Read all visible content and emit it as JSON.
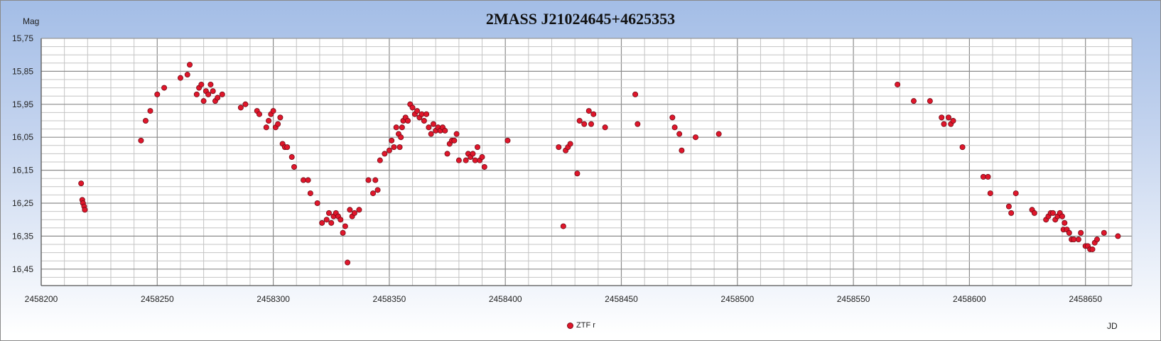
{
  "chart_data": {
    "type": "scatter",
    "title": "2MASS J21024645+4625353",
    "ylabel": "Mag",
    "xlabel": "JD",
    "xlim": [
      2458200,
      2458670
    ],
    "ylim": [
      15.75,
      16.5
    ],
    "y_inverted": true,
    "grid": true,
    "legend_position": "bottom-center",
    "xticks": [
      "2458200",
      "2458250",
      "2458300",
      "2458350",
      "2458400",
      "2458450",
      "2458500",
      "2458550",
      "2458600",
      "2458650"
    ],
    "yticks": [
      "15,75",
      "15,85",
      "15,95",
      "16,05",
      "16,15",
      "16,25",
      "16,35",
      "16,45"
    ],
    "series": [
      {
        "name": "ZTF r",
        "color": "#e0162b",
        "points": [
          [
            2458217.2,
            16.19
          ],
          [
            2458217.7,
            16.24
          ],
          [
            2458218.0,
            16.25
          ],
          [
            2458218.5,
            16.26
          ],
          [
            2458218.8,
            16.27
          ],
          [
            2458243,
            16.06
          ],
          [
            2458245,
            16.0
          ],
          [
            2458247,
            15.97
          ],
          [
            2458250,
            15.92
          ],
          [
            2458253,
            15.9
          ],
          [
            2458260,
            15.87
          ],
          [
            2458263,
            15.86
          ],
          [
            2458264,
            15.83
          ],
          [
            2458267,
            15.92
          ],
          [
            2458268,
            15.9
          ],
          [
            2458269,
            15.89
          ],
          [
            2458270,
            15.94
          ],
          [
            2458271,
            15.91
          ],
          [
            2458272,
            15.92
          ],
          [
            2458273,
            15.89
          ],
          [
            2458274,
            15.91
          ],
          [
            2458275,
            15.94
          ],
          [
            2458276,
            15.93
          ],
          [
            2458278,
            15.92
          ],
          [
            2458286,
            15.96
          ],
          [
            2458288,
            15.95
          ],
          [
            2458293,
            15.97
          ],
          [
            2458294,
            15.98
          ],
          [
            2458297,
            16.02
          ],
          [
            2458298,
            16.0
          ],
          [
            2458299,
            15.98
          ],
          [
            2458300,
            15.97
          ],
          [
            2458301,
            16.02
          ],
          [
            2458302,
            16.01
          ],
          [
            2458303,
            15.99
          ],
          [
            2458304,
            16.07
          ],
          [
            2458305,
            16.08
          ],
          [
            2458306,
            16.08
          ],
          [
            2458308,
            16.11
          ],
          [
            2458309,
            16.14
          ],
          [
            2458313,
            16.18
          ],
          [
            2458315,
            16.18
          ],
          [
            2458316,
            16.22
          ],
          [
            2458319,
            16.25
          ],
          [
            2458321,
            16.31
          ],
          [
            2458323,
            16.3
          ],
          [
            2458324,
            16.28
          ],
          [
            2458325,
            16.31
          ],
          [
            2458326,
            16.29
          ],
          [
            2458327,
            16.28
          ],
          [
            2458328,
            16.29
          ],
          [
            2458329,
            16.3
          ],
          [
            2458330,
            16.34
          ],
          [
            2458331,
            16.32
          ],
          [
            2458332,
            16.43
          ],
          [
            2458333,
            16.27
          ],
          [
            2458334,
            16.29
          ],
          [
            2458335,
            16.28
          ],
          [
            2458337,
            16.27
          ],
          [
            2458341,
            16.18
          ],
          [
            2458343,
            16.22
          ],
          [
            2458344,
            16.18
          ],
          [
            2458345,
            16.21
          ],
          [
            2458346,
            16.12
          ],
          [
            2458348,
            16.1
          ],
          [
            2458350,
            16.09
          ],
          [
            2458351,
            16.06
          ],
          [
            2458352,
            16.08
          ],
          [
            2458353,
            16.02
          ],
          [
            2458354,
            16.04
          ],
          [
            2458354.5,
            16.08
          ],
          [
            2458355,
            16.05
          ],
          [
            2458355.5,
            16.02
          ],
          [
            2458356,
            16.0
          ],
          [
            2458357,
            15.99
          ],
          [
            2458358,
            16.0
          ],
          [
            2458359,
            15.95
          ],
          [
            2458360,
            15.96
          ],
          [
            2458361,
            15.98
          ],
          [
            2458362,
            15.97
          ],
          [
            2458363,
            15.99
          ],
          [
            2458364,
            15.98
          ],
          [
            2458365,
            16.0
          ],
          [
            2458366,
            15.98
          ],
          [
            2458367,
            16.02
          ],
          [
            2458368,
            16.04
          ],
          [
            2458369,
            16.01
          ],
          [
            2458370,
            16.03
          ],
          [
            2458371,
            16.02
          ],
          [
            2458372,
            16.03
          ],
          [
            2458373,
            16.02
          ],
          [
            2458374,
            16.03
          ],
          [
            2458375,
            16.1
          ],
          [
            2458376,
            16.07
          ],
          [
            2458377,
            16.06
          ],
          [
            2458378,
            16.06
          ],
          [
            2458379,
            16.04
          ],
          [
            2458380,
            16.12
          ],
          [
            2458383,
            16.12
          ],
          [
            2458384,
            16.1
          ],
          [
            2458385,
            16.11
          ],
          [
            2458386,
            16.1
          ],
          [
            2458387,
            16.12
          ],
          [
            2458388,
            16.08
          ],
          [
            2458389,
            16.12
          ],
          [
            2458390,
            16.11
          ],
          [
            2458391,
            16.14
          ],
          [
            2458401,
            16.06
          ],
          [
            2458423,
            16.08
          ],
          [
            2458425,
            16.32
          ],
          [
            2458426,
            16.09
          ],
          [
            2458427,
            16.08
          ],
          [
            2458428,
            16.07
          ],
          [
            2458431,
            16.16
          ],
          [
            2458432,
            16.0
          ],
          [
            2458434,
            16.01
          ],
          [
            2458436,
            15.97
          ],
          [
            2458437,
            16.01
          ],
          [
            2458438,
            15.98
          ],
          [
            2458443,
            16.02
          ],
          [
            2458456,
            15.92
          ],
          [
            2458457,
            16.01
          ],
          [
            2458472,
            15.99
          ],
          [
            2458473,
            16.02
          ],
          [
            2458475,
            16.04
          ],
          [
            2458476,
            16.09
          ],
          [
            2458482,
            16.05
          ],
          [
            2458492,
            16.04
          ],
          [
            2458569,
            15.89
          ],
          [
            2458576,
            15.94
          ],
          [
            2458583,
            15.94
          ],
          [
            2458588,
            15.99
          ],
          [
            2458589,
            16.01
          ],
          [
            2458591,
            15.99
          ],
          [
            2458592,
            16.01
          ],
          [
            2458593,
            16.0
          ],
          [
            2458597,
            16.08
          ],
          [
            2458606,
            16.17
          ],
          [
            2458608,
            16.17
          ],
          [
            2458609,
            16.22
          ],
          [
            2458617,
            16.26
          ],
          [
            2458618,
            16.28
          ],
          [
            2458620,
            16.22
          ],
          [
            2458627,
            16.27
          ],
          [
            2458628,
            16.28
          ],
          [
            2458633,
            16.3
          ],
          [
            2458634,
            16.29
          ],
          [
            2458635,
            16.28
          ],
          [
            2458636,
            16.28
          ],
          [
            2458637,
            16.3
          ],
          [
            2458638,
            16.29
          ],
          [
            2458639,
            16.28
          ],
          [
            2458640,
            16.29
          ],
          [
            2458640.5,
            16.33
          ],
          [
            2458641,
            16.31
          ],
          [
            2458642,
            16.33
          ],
          [
            2458643,
            16.34
          ],
          [
            2458644,
            16.36
          ],
          [
            2458645,
            16.36
          ],
          [
            2458647,
            16.36
          ],
          [
            2458648,
            16.34
          ],
          [
            2458650,
            16.38
          ],
          [
            2458651,
            16.38
          ],
          [
            2458652,
            16.39
          ],
          [
            2458653,
            16.39
          ],
          [
            2458654,
            16.37
          ],
          [
            2458655,
            16.36
          ],
          [
            2458658,
            16.34
          ],
          [
            2458664,
            16.35
          ]
        ]
      }
    ]
  }
}
